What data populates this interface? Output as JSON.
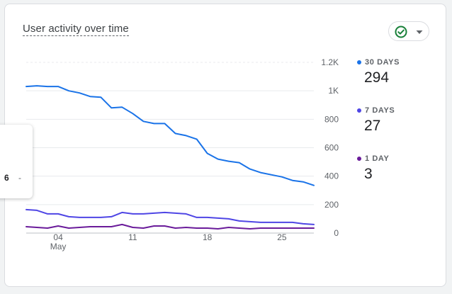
{
  "card": {
    "title": "User activity over time"
  },
  "status_chip": {
    "icon": "check-circle-icon",
    "caret_icon": "caret-down-icon",
    "check_color": "#188038"
  },
  "legend": [
    {
      "label": "30 DAYS",
      "value": "294",
      "color": "#1a73e8"
    },
    {
      "label": "7 DAYS",
      "value": "27",
      "color": "#4f46e5"
    },
    {
      "label": "1 DAY",
      "value": "3",
      "color": "#6a1b9a"
    }
  ],
  "tooltip": {
    "value": "6",
    "dash": "-"
  },
  "chart_data": {
    "type": "line",
    "x": [
      1,
      2,
      3,
      4,
      5,
      6,
      7,
      8,
      9,
      10,
      11,
      12,
      13,
      14,
      15,
      16,
      17,
      18,
      19,
      20,
      21,
      22,
      23,
      24,
      25,
      26,
      27,
      28
    ],
    "x_tick_labels": [
      {
        "at": 4,
        "label": "04",
        "sublabel": "May"
      },
      {
        "at": 11,
        "label": "11"
      },
      {
        "at": 18,
        "label": "18"
      },
      {
        "at": 25,
        "label": "25"
      }
    ],
    "yticks": [
      0,
      200,
      400,
      600,
      800,
      1000,
      1200
    ],
    "ytick_labels": [
      "0",
      "200",
      "400",
      "600",
      "800",
      "1K",
      "1.2K"
    ],
    "ylim": [
      0,
      1200
    ],
    "xlim": [
      1,
      28
    ],
    "grid": true,
    "series": [
      {
        "name": "30 DAYS",
        "color": "#1a73e8",
        "values": [
          1030,
          1035,
          1030,
          1030,
          1000,
          985,
          960,
          955,
          880,
          885,
          840,
          785,
          770,
          770,
          700,
          685,
          660,
          560,
          520,
          505,
          495,
          450,
          425,
          410,
          395,
          370,
          360,
          335
        ]
      },
      {
        "name": "7 DAYS",
        "color": "#4f46e5",
        "values": [
          165,
          160,
          135,
          135,
          115,
          110,
          110,
          110,
          115,
          145,
          135,
          135,
          140,
          145,
          140,
          135,
          110,
          110,
          105,
          100,
          85,
          80,
          75,
          75,
          75,
          75,
          65,
          60
        ]
      },
      {
        "name": "1 DAY",
        "color": "#6a1b9a",
        "values": [
          45,
          40,
          35,
          50,
          35,
          40,
          45,
          45,
          45,
          60,
          40,
          35,
          50,
          50,
          35,
          40,
          35,
          35,
          30,
          40,
          35,
          30,
          35,
          35,
          35,
          35,
          35,
          35
        ]
      }
    ]
  }
}
